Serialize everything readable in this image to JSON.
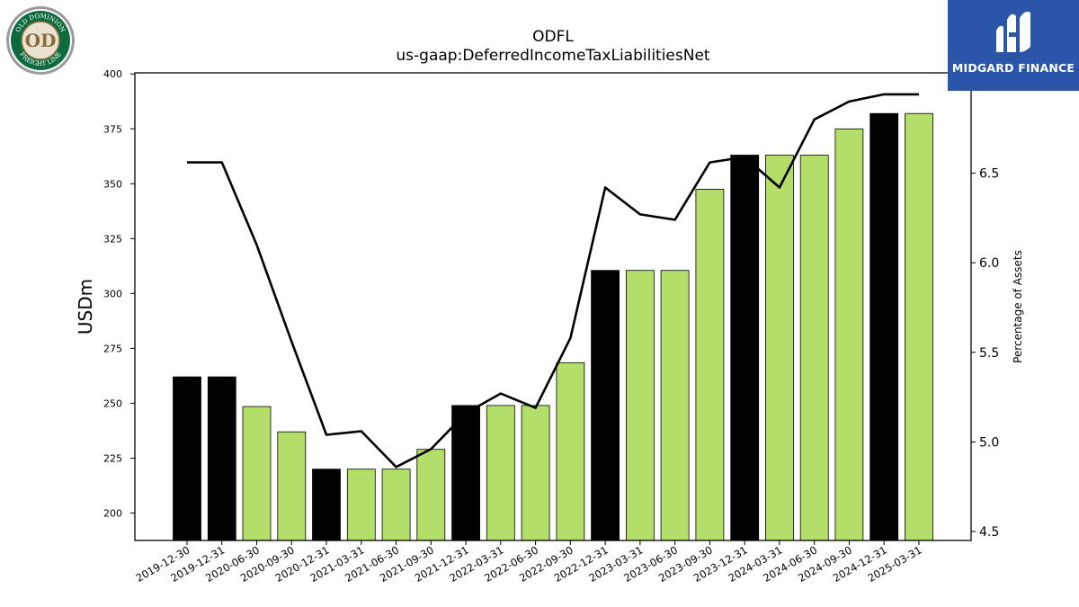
{
  "header": {
    "title": "ODFL",
    "subtitle": "us-gaap:DeferredIncomeTaxLiabilitiesNet"
  },
  "branding": {
    "left_logo_text": [
      "OLD DOMINION",
      "FREIGHT LINE"
    ],
    "right_brand_name": "MIDGARD FINANCE",
    "right_brand_color": "#2b55a8"
  },
  "chart_data": {
    "type": "bar",
    "ylabel": "USDm",
    "y2label": "Percentage of Assets",
    "ylim": [
      187.5,
      400.5
    ],
    "y2lim": [
      4.45,
      7.06
    ],
    "y_ticks": [
      200,
      225,
      250,
      275,
      300,
      325,
      350,
      375,
      400
    ],
    "y2_ticks": [
      4.5,
      5.0,
      5.5,
      6.0,
      6.5
    ],
    "categories": [
      "2019-12-30",
      "2019-12-31",
      "2020-06-30",
      "2020-09-30",
      "2020-12-31",
      "2021-03-31",
      "2021-06-30",
      "2021-09-30",
      "2021-12-31",
      "2022-03-31",
      "2022-06-30",
      "2022-09-30",
      "2022-12-31",
      "2023-03-31",
      "2023-06-30",
      "2023-09-30",
      "2023-12-31",
      "2024-03-31",
      "2024-06-30",
      "2024-09-30",
      "2024-12-31",
      "2025-03-31"
    ],
    "series": [
      {
        "axis": "left",
        "kind": "bar",
        "values": [
          262,
          262,
          248.5,
          237,
          220,
          220,
          220,
          229,
          249,
          249,
          249,
          268.5,
          310.5,
          310.5,
          310.5,
          347.5,
          363,
          363,
          363,
          375,
          382,
          382
        ],
        "bar_colors": [
          "#000000",
          "#000000",
          "#b3de69",
          "#b3de69",
          "#000000",
          "#b3de69",
          "#b3de69",
          "#b3de69",
          "#000000",
          "#b3de69",
          "#b3de69",
          "#b3de69",
          "#000000",
          "#b3de69",
          "#b3de69",
          "#b3de69",
          "#000000",
          "#b3de69",
          "#b3de69",
          "#b3de69",
          "#000000",
          "#b3de69"
        ]
      },
      {
        "axis": "right",
        "kind": "line",
        "color": "#000000",
        "values": [
          6.56,
          6.56,
          6.1,
          5.56,
          5.04,
          5.06,
          4.86,
          4.96,
          5.16,
          5.27,
          5.19,
          5.58,
          6.42,
          6.27,
          6.24,
          6.56,
          6.59,
          6.42,
          6.8,
          6.9,
          6.94,
          6.94
        ]
      }
    ],
    "colors": {
      "annual_bar": "#000000",
      "quarter_bar": "#b3de69",
      "line": "#000000"
    },
    "grid": false,
    "legend": "none"
  }
}
